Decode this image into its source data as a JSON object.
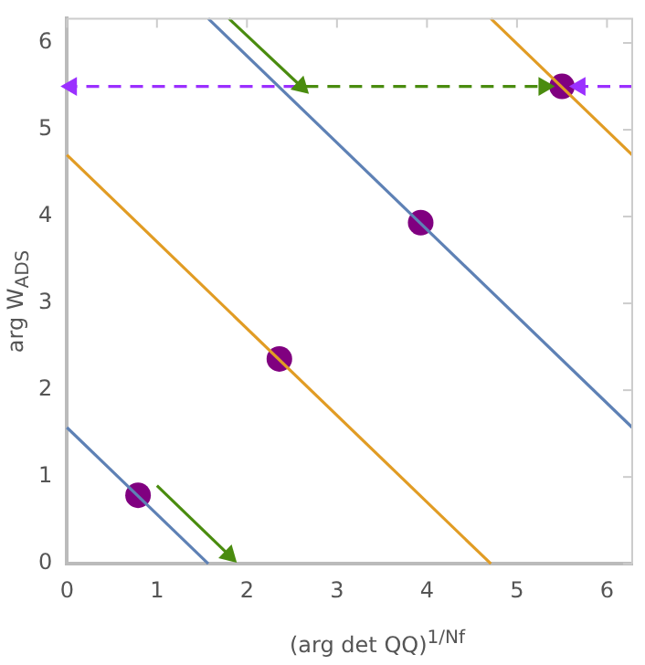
{
  "chart_data": {
    "type": "line",
    "xlabel": "(arg det QQ)$^{1/Nf}$",
    "ylabel": "arg W$_{ADS}$",
    "xlim": [
      0,
      6.28
    ],
    "ylim": [
      0,
      6.28
    ],
    "xticks": [
      0,
      1,
      2,
      3,
      4,
      5,
      6
    ],
    "yticks": [
      0,
      1,
      2,
      3,
      4,
      5,
      6
    ],
    "grid": false,
    "legend": false,
    "series": [
      {
        "color": "#5e81b5",
        "x": [
          0,
          1.57
        ],
        "values": [
          1.57,
          0
        ]
      },
      {
        "color": "#e19c24",
        "x": [
          0,
          4.71
        ],
        "values": [
          4.71,
          0
        ]
      },
      {
        "color": "#5e81b5",
        "x": [
          1.57,
          6.28
        ],
        "values": [
          6.28,
          1.57
        ]
      },
      {
        "color": "#e19c24",
        "x": [
          4.71,
          6.28
        ],
        "values": [
          6.28,
          4.71
        ]
      },
      {
        "color": "#4a8c0f",
        "marker": "triangle",
        "x": [
          1.0,
          1.8
        ],
        "values": [
          0.9,
          0.1
        ]
      },
      {
        "color": "#4a8c0f",
        "marker": "triangle",
        "x": [
          1.8,
          2.6
        ],
        "values": [
          6.28,
          5.5
        ]
      },
      {
        "color": "#4a8c0f",
        "marker": "triangle",
        "line_style": "dashed",
        "x": [
          2.65,
          5.3
        ],
        "values": [
          5.5,
          5.5
        ]
      },
      {
        "color": "#9b30ff",
        "marker": "triangle",
        "line_style": "dashed",
        "x": [
          2.55,
          0.05
        ],
        "values": [
          5.5,
          5.5
        ]
      },
      {
        "color": "#9b30ff",
        "marker": "triangle",
        "line_style": "dashed",
        "x": [
          6.28,
          5.7
        ],
        "values": [
          5.5,
          5.5
        ]
      },
      {
        "type": "scatter",
        "color": "#800080",
        "marker": "circle",
        "x": [
          0.79,
          2.36,
          3.93,
          5.5
        ],
        "values": [
          0.79,
          2.36,
          3.93,
          5.5
        ]
      }
    ]
  }
}
